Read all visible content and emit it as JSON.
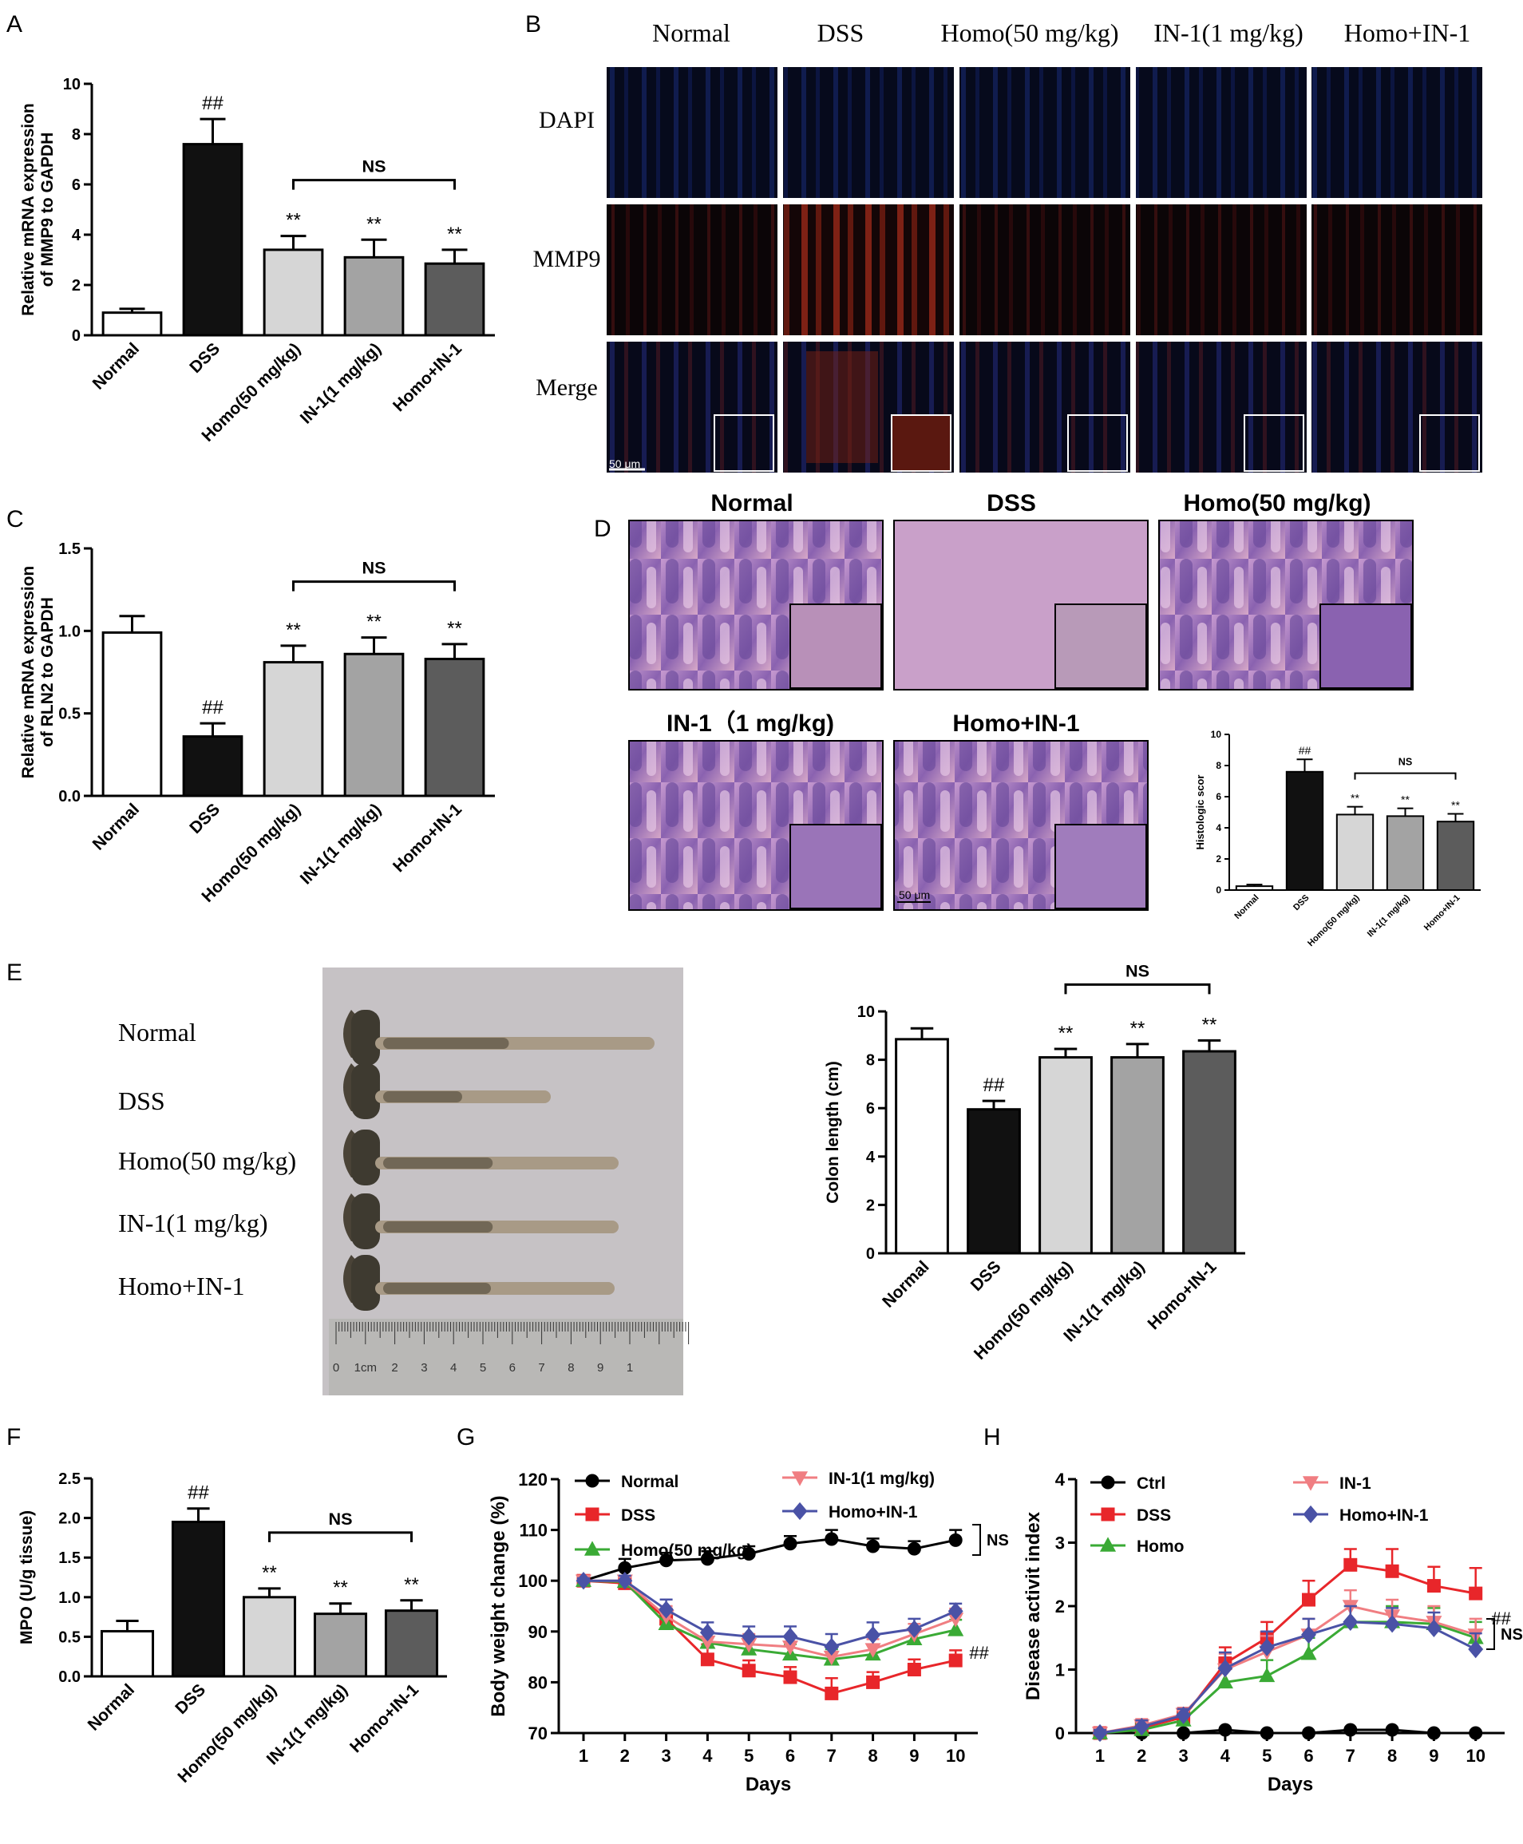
{
  "figure": {
    "panel_labels": [
      "A",
      "B",
      "C",
      "D",
      "E",
      "F",
      "G",
      "H"
    ],
    "categories": [
      "Normal",
      "DSS",
      "Homo(50 mg/kg)",
      "IN-1(1 mg/kg)",
      "Homo+IN-1"
    ],
    "bar_colors": [
      "#ffffff",
      "#111111",
      "#d6d6d6",
      "#a3a3a3",
      "#5c5c5c"
    ]
  },
  "panel_B": {
    "columns": [
      "Normal",
      "DSS",
      "Homo(50 mg/kg)",
      "IN-1(1 mg/kg)",
      "Homo+IN-1"
    ],
    "rows": [
      "DAPI",
      "MMP9",
      "Merge"
    ],
    "scale_bar": "50 μm"
  },
  "panel_D": {
    "images_top": [
      "Normal",
      "DSS",
      "Homo(50 mg/kg)"
    ],
    "images_bottom": [
      "IN-1（1 mg/kg)",
      "Homo+IN-1"
    ],
    "scale_bar": "50 μm"
  },
  "panel_E": {
    "labels": [
      "Normal",
      "DSS",
      "Homo(50 mg/kg)",
      "IN-1(1 mg/kg)",
      "Homo+IN-1"
    ],
    "ruler_labels": [
      "0",
      "1cm",
      "2",
      "3",
      "4",
      "5",
      "6",
      "7",
      "8",
      "9",
      "1"
    ]
  },
  "chart_data": [
    {
      "id": "A",
      "type": "bar",
      "categories": [
        "Normal",
        "DSS",
        "Homo(50 mg/kg)",
        "IN-1(1 mg/kg)",
        "Homo+IN-1"
      ],
      "values": [
        0.9,
        7.6,
        3.4,
        3.1,
        2.85
      ],
      "errors": [
        0.15,
        1.0,
        0.55,
        0.7,
        0.55
      ],
      "ylabel": "Relative mRNA expression\nof MMP9 to GAPDH",
      "ylim": [
        0,
        10
      ],
      "yticks": [
        0,
        2,
        4,
        6,
        8,
        10
      ],
      "annotations": [
        "",
        "##",
        "**",
        "**",
        "**"
      ],
      "bracket": {
        "from": 2,
        "to": 4,
        "label": "NS"
      }
    },
    {
      "id": "C",
      "type": "bar",
      "categories": [
        "Normal",
        "DSS",
        "Homo(50 mg/kg)",
        "IN-1(1 mg/kg)",
        "Homo+IN-1"
      ],
      "values": [
        0.99,
        0.36,
        0.81,
        0.86,
        0.83
      ],
      "errors": [
        0.1,
        0.08,
        0.1,
        0.1,
        0.09
      ],
      "ylabel": "Relative mRNA expression\nof RLN2 to GAPDH",
      "ylim": [
        0,
        1.5
      ],
      "yticks": [
        "0.0",
        "0.5",
        "1.0",
        "1.5"
      ],
      "annotations": [
        "",
        "##",
        "**",
        "**",
        "**"
      ],
      "bracket": {
        "from": 2,
        "to": 4,
        "label": "NS"
      }
    },
    {
      "id": "D",
      "type": "bar",
      "categories": [
        "Normal",
        "DSS",
        "Homo(50 mg/kg)",
        "IN-1(1 mg/kg)",
        "Homo+IN-1"
      ],
      "values": [
        0.25,
        7.6,
        4.85,
        4.75,
        4.4
      ],
      "errors": [
        0.1,
        0.8,
        0.5,
        0.5,
        0.5
      ],
      "ylabel": "Histologic scor",
      "ylim": [
        0,
        10
      ],
      "yticks": [
        0,
        2,
        4,
        6,
        8,
        10
      ],
      "annotations": [
        "",
        "##",
        "**",
        "**",
        "**"
      ],
      "bracket": {
        "from": 2,
        "to": 4,
        "label": "NS"
      }
    },
    {
      "id": "E",
      "type": "bar",
      "categories": [
        "Normal",
        "DSS",
        "Homo(50 mg/kg)",
        "IN-1(1 mg/kg)",
        "Homo+IN-1"
      ],
      "values": [
        8.85,
        5.95,
        8.1,
        8.1,
        8.35
      ],
      "errors": [
        0.45,
        0.35,
        0.35,
        0.55,
        0.45
      ],
      "ylabel": "Colon length (cm)",
      "ylim": [
        0,
        10
      ],
      "yticks": [
        0,
        2,
        4,
        6,
        8,
        10
      ],
      "annotations": [
        "",
        "##",
        "**",
        "**",
        "**"
      ],
      "bracket": {
        "from": 2,
        "to": 4,
        "label": "NS"
      }
    },
    {
      "id": "F",
      "type": "bar",
      "categories": [
        "Normal",
        "DSS",
        "Homo(50 mg/kg)",
        "IN-1(1 mg/kg)",
        "Homo+IN-1"
      ],
      "values": [
        0.57,
        1.95,
        1.0,
        0.79,
        0.83
      ],
      "errors": [
        0.13,
        0.17,
        0.11,
        0.13,
        0.13
      ],
      "ylabel": "MPO (U/g tissue)",
      "ylim": [
        0,
        2.5
      ],
      "yticks": [
        "0.0",
        "0.5",
        "1.0",
        "1.5",
        "2.0",
        "2.5"
      ],
      "annotations": [
        "",
        "##",
        "**",
        "**",
        "**"
      ],
      "bracket": {
        "from": 2,
        "to": 4,
        "label": "NS"
      }
    },
    {
      "id": "G",
      "type": "line",
      "x": [
        1,
        2,
        3,
        4,
        5,
        6,
        7,
        8,
        9,
        10
      ],
      "xlabel": "Days",
      "ylabel": "Body weight change (%)",
      "ylim": [
        70,
        120
      ],
      "yticks": [
        70,
        80,
        90,
        100,
        110,
        120
      ],
      "series": [
        {
          "name": "Normal",
          "color": "#000000",
          "marker": "circle",
          "values": [
            100,
            102.5,
            104,
            104.3,
            105.3,
            107.3,
            108.2,
            106.8,
            106.3,
            108
          ],
          "errors": [
            0.5,
            1.8,
            1.5,
            1.5,
            1.5,
            1.5,
            1.8,
            1.5,
            1.5,
            2
          ]
        },
        {
          "name": "DSS",
          "color": "#e8262a",
          "marker": "square",
          "values": [
            100,
            99.5,
            92.5,
            84.5,
            82.3,
            81,
            77.8,
            80,
            82.5,
            84.3
          ],
          "errors": [
            0.5,
            1,
            2,
            3,
            2,
            2,
            3,
            2,
            2,
            2
          ]
        },
        {
          "name": "Homo(50 mg/kg)",
          "color": "#3aaa35",
          "marker": "triangle",
          "values": [
            100,
            99.8,
            91.5,
            87.8,
            86.5,
            85.5,
            84.5,
            85.5,
            88.5,
            90.3
          ],
          "errors": [
            0.5,
            1,
            2,
            2,
            2,
            2,
            2,
            2,
            2,
            2
          ]
        },
        {
          "name": "IN-1(1 mg/kg)",
          "color": "#f07e82",
          "marker": "triangle-down",
          "values": [
            100,
            100,
            93,
            88,
            87.5,
            87,
            85,
            86.5,
            89.5,
            92.5
          ],
          "errors": [
            0.5,
            1,
            2,
            2,
            2,
            2,
            2,
            2,
            2,
            2
          ]
        },
        {
          "name": "Homo+IN-1",
          "color": "#4a52a6",
          "marker": "diamond",
          "values": [
            100,
            100,
            94.3,
            89.8,
            89,
            89,
            87,
            89.3,
            90.5,
            94
          ],
          "errors": [
            0.5,
            1,
            2,
            2,
            2,
            2,
            2.5,
            2.5,
            2,
            1.5
          ]
        }
      ],
      "annotations": [
        {
          "text": "NS"
        },
        {
          "text": "##"
        }
      ]
    },
    {
      "id": "H",
      "type": "line",
      "x": [
        1,
        2,
        3,
        4,
        5,
        6,
        7,
        8,
        9,
        10
      ],
      "xlabel": "Days",
      "ylabel": "Disease activit index",
      "ylim": [
        0,
        4
      ],
      "yticks": [
        0,
        1,
        2,
        3,
        4
      ],
      "series": [
        {
          "name": "Ctrl",
          "color": "#000000",
          "marker": "circle",
          "values": [
            0,
            0,
            0,
            0.05,
            0,
            0,
            0.05,
            0.05,
            0,
            0
          ],
          "errors": [
            0,
            0,
            0,
            0,
            0,
            0,
            0,
            0,
            0,
            0
          ]
        },
        {
          "name": "DSS",
          "color": "#e8262a",
          "marker": "square",
          "values": [
            0,
            0.08,
            0.25,
            1.1,
            1.5,
            2.1,
            2.65,
            2.55,
            2.32,
            2.2
          ],
          "errors": [
            0.05,
            0.1,
            0.1,
            0.25,
            0.25,
            0.3,
            0.25,
            0.35,
            0.3,
            0.4
          ]
        },
        {
          "name": "Homo",
          "color": "#3aaa35",
          "marker": "triangle",
          "values": [
            0,
            0.05,
            0.2,
            0.8,
            0.9,
            1.25,
            1.75,
            1.75,
            1.72,
            1.5
          ],
          "errors": [
            0.05,
            0.1,
            0.1,
            0.25,
            0.25,
            0.25,
            0.25,
            0.25,
            0.25,
            0.25
          ]
        },
        {
          "name": "IN-1",
          "color": "#f07e82",
          "marker": "triangle-down",
          "values": [
            0,
            0.12,
            0.3,
            1.0,
            1.28,
            1.55,
            2.0,
            1.85,
            1.75,
            1.55
          ],
          "errors": [
            0.05,
            0.1,
            0.1,
            0.25,
            0.25,
            0.25,
            0.25,
            0.25,
            0.25,
            0.25
          ]
        },
        {
          "name": "Homo+IN-1",
          "color": "#4a52a6",
          "marker": "diamond",
          "values": [
            0,
            0.1,
            0.28,
            1.02,
            1.35,
            1.55,
            1.75,
            1.72,
            1.65,
            1.32
          ],
          "errors": [
            0.05,
            0.1,
            0.1,
            0.25,
            0.25,
            0.25,
            0.25,
            0.25,
            0.25,
            0.25
          ]
        }
      ],
      "annotations": [
        {
          "text": "##"
        },
        {
          "text": "NS"
        }
      ]
    }
  ]
}
